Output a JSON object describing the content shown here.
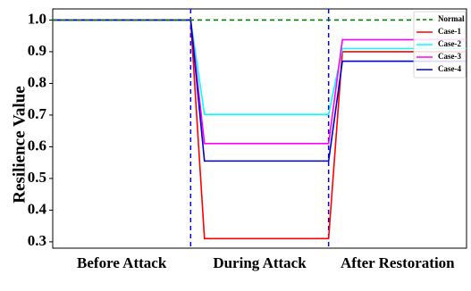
{
  "chart_data": {
    "type": "line",
    "title": "",
    "xlabel": "",
    "ylabel": "Resilience Value",
    "x_categories": [
      "Before Attack",
      "During Attack",
      "After Restoration"
    ],
    "ylim": [
      0.28,
      1.035
    ],
    "yticks": [
      0.3,
      0.4,
      0.5,
      0.6,
      0.7,
      0.8,
      0.9,
      1.0
    ],
    "ytick_labels": [
      "0.3",
      "0.4",
      "0.5",
      "0.6",
      "0.7",
      "0.8",
      "0.9",
      "1.0"
    ],
    "xlim": [
      0,
      3
    ],
    "event_lines": [
      1,
      2
    ],
    "event_line_color": "#0000ff",
    "legend_position": "top-right",
    "grid": false,
    "series": [
      {
        "name": "Normal",
        "color": "#008000",
        "dash": true,
        "x": [
          0,
          3
        ],
        "y": [
          1.0,
          1.0
        ]
      },
      {
        "name": "Case-1",
        "color": "#ff0000",
        "dash": false,
        "x": [
          0,
          1,
          1.1,
          2,
          2.1,
          3
        ],
        "y": [
          1.0,
          1.0,
          0.31,
          0.31,
          0.9,
          0.9
        ]
      },
      {
        "name": "Case-2",
        "color": "#00ffff",
        "dash": false,
        "x": [
          0,
          1,
          1.1,
          2,
          2.1,
          3
        ],
        "y": [
          1.0,
          1.0,
          0.702,
          0.702,
          0.91,
          0.91
        ]
      },
      {
        "name": "Case-3",
        "color": "#ff00ff",
        "dash": false,
        "x": [
          0,
          1,
          1.1,
          2,
          2.1,
          3
        ],
        "y": [
          1.0,
          1.0,
          0.61,
          0.61,
          0.938,
          0.938
        ]
      },
      {
        "name": "Case-4",
        "color": "#0000cd",
        "dash": false,
        "x": [
          0,
          1,
          1.1,
          2,
          2.1,
          3
        ],
        "y": [
          1.0,
          1.0,
          0.555,
          0.555,
          0.87,
          0.87
        ]
      }
    ]
  }
}
